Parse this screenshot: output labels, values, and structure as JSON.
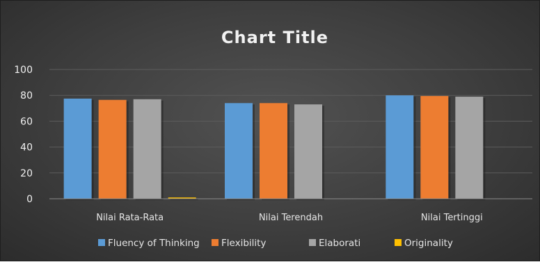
{
  "chart_data": {
    "type": "bar",
    "title": "Chart Title",
    "xlabel": "",
    "ylabel": "",
    "categories": [
      "Nilai Rata-Rata",
      "Nilai Terendah",
      "Nilai Tertinggi"
    ],
    "ylim": [
      0,
      100
    ],
    "yticks": [
      0,
      20,
      40,
      60,
      80,
      100
    ],
    "grid": true,
    "legend_position": "bottom",
    "series": [
      {
        "name": "Fluency of Thinking",
        "color": "#5b9bd5",
        "values": [
          77.5,
          74,
          80
        ]
      },
      {
        "name": "Flexibility",
        "color": "#ed7d31",
        "values": [
          76.5,
          74,
          79.5
        ]
      },
      {
        "name": "Elaborati",
        "color": "#a5a5a5",
        "values": [
          77,
          73,
          79
        ]
      },
      {
        "name": "Originality",
        "color": "#ffc000",
        "values": [
          1,
          0,
          0
        ]
      }
    ]
  }
}
